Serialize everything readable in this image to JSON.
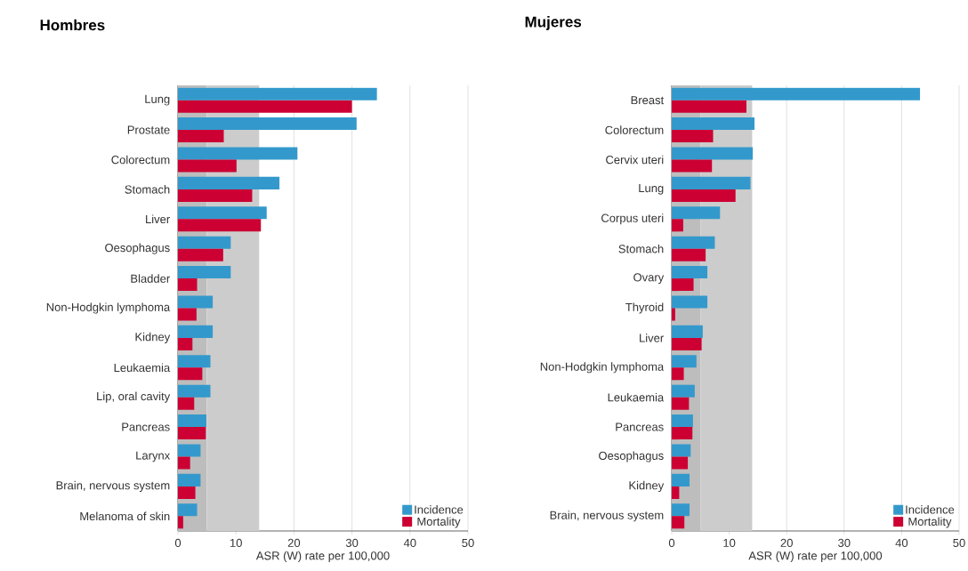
{
  "chart_data": [
    {
      "type": "bar",
      "orientation": "horizontal",
      "title": "Hombres",
      "xlabel": "ASR (W) rate per 100,000",
      "categories": [
        "Lung",
        "Prostate",
        "Colorectum",
        "Stomach",
        "Liver",
        "Oesophagus",
        "Bladder",
        "Non-Hodgkin lymphoma",
        "Kidney",
        "Leukaemia",
        "Lip, oral cavity",
        "Pancreas",
        "Larynx",
        "Brain, nervous system",
        "Melanoma of skin"
      ],
      "series": [
        {
          "name": "Incidence",
          "color": "#3399cc",
          "values": [
            34.3,
            30.8,
            20.6,
            17.5,
            15.3,
            9.1,
            9.1,
            6.0,
            6.0,
            5.6,
            5.6,
            4.9,
            3.9,
            3.9,
            3.3
          ]
        },
        {
          "name": "Mortality",
          "color": "#cc0033",
          "values": [
            30.0,
            7.9,
            10.1,
            12.8,
            14.3,
            7.8,
            3.3,
            3.2,
            2.5,
            4.2,
            2.8,
            4.8,
            2.1,
            3.0,
            0.9
          ]
        }
      ],
      "xlim": [
        0,
        50
      ],
      "xticks": [
        0,
        10,
        20,
        30,
        40,
        50
      ],
      "grid": "x",
      "legend": "bottom right",
      "bands": [
        {
          "axis": "x",
          "from": 0,
          "to": 5,
          "color": "#bdbdbd"
        },
        {
          "axis": "x",
          "from": 5,
          "to": 14,
          "color": "#cccccc"
        }
      ]
    },
    {
      "type": "bar",
      "orientation": "horizontal",
      "title": "Mujeres",
      "xlabel": "ASR (W) rate per 100,000",
      "categories": [
        "Breast",
        "Colorectum",
        "Cervix uteri",
        "Lung",
        "Corpus uteri",
        "Stomach",
        "Ovary",
        "Thyroid",
        "Liver",
        "Non-Hodgkin lymphoma",
        "Leukaemia",
        "Pancreas",
        "Oesophagus",
        "Kidney",
        "Brain, nervous system"
      ],
      "series": [
        {
          "name": "Incidence",
          "color": "#3399cc",
          "values": [
            43.2,
            14.4,
            14.1,
            13.7,
            8.4,
            7.5,
            6.2,
            6.2,
            5.4,
            4.3,
            4.0,
            3.7,
            3.3,
            3.1,
            3.1
          ]
        },
        {
          "name": "Mortality",
          "color": "#cc0033",
          "values": [
            13.0,
            7.2,
            7.0,
            11.1,
            2.0,
            5.9,
            3.8,
            0.6,
            5.2,
            2.1,
            3.0,
            3.6,
            2.8,
            1.3,
            2.2
          ]
        }
      ],
      "xlim": [
        0,
        50
      ],
      "xticks": [
        0,
        10,
        20,
        30,
        40,
        50
      ],
      "grid": "x",
      "legend": "bottom right",
      "bands": [
        {
          "axis": "x",
          "from": 0,
          "to": 5,
          "color": "#bdbdbd"
        },
        {
          "axis": "x",
          "from": 5,
          "to": 14,
          "color": "#cccccc"
        }
      ]
    }
  ]
}
